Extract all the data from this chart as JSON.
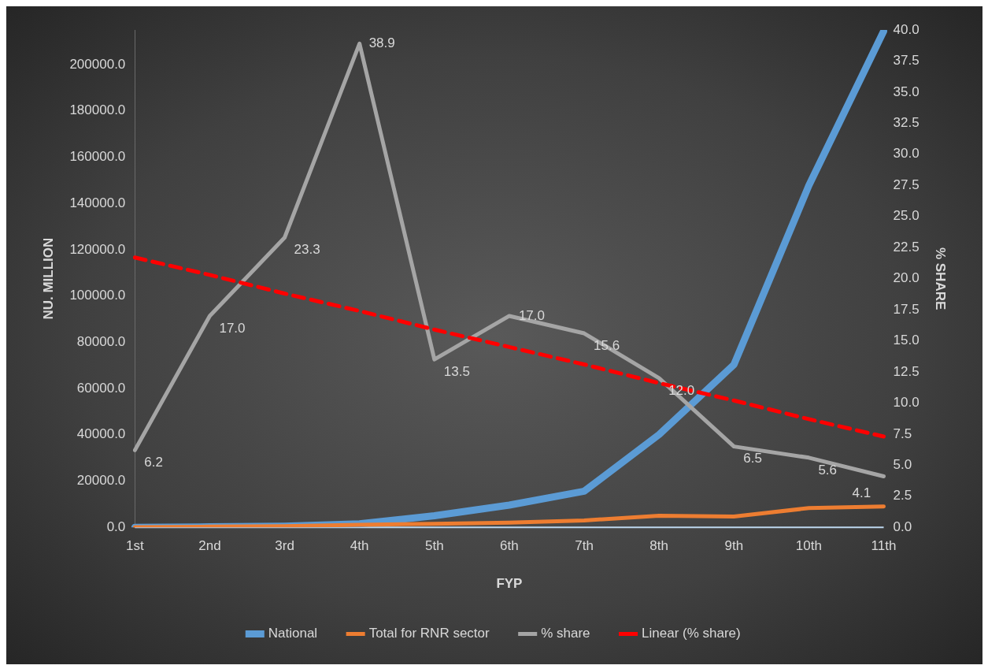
{
  "chart_data": {
    "type": "line",
    "xlabel": "FYP",
    "ylabel": "NU. MILLION",
    "y2label": "% SHARE",
    "categories": [
      "1st",
      "2nd",
      "3rd",
      "4th",
      "5th",
      "6th",
      "7th",
      "8th",
      "9th",
      "10th",
      "11th"
    ],
    "series": [
      {
        "name": "National",
        "color": "#5b9bd5",
        "values": [
          0,
          200,
          500,
          1500,
          5000,
          9600,
          15600,
          40100,
          70300,
          147700,
          214500
        ]
      },
      {
        "name": "Total for RNR sector",
        "color": "#ed7d31",
        "values": [
          100,
          300,
          500,
          1100,
          1500,
          2000,
          3000,
          5000,
          4700,
          8300,
          9000
        ]
      },
      {
        "name": "% share",
        "color": "#a5a5a5",
        "axis": "y2",
        "values": [
          6.2,
          17.0,
          23.3,
          38.9,
          13.5,
          17.0,
          15.6,
          12.0,
          6.5,
          5.6,
          4.1
        ],
        "value_labels": [
          "6.2",
          "17.0",
          "23.3",
          "38.9",
          "13.5",
          "17.0",
          "15.6",
          "12.0",
          "6.5",
          "5.6",
          "4.1"
        ]
      },
      {
        "name": "Linear (% share)",
        "color": "#ff0000",
        "axis": "y2",
        "line_style": "dashed",
        "values": [
          21.7,
          20.3,
          18.8,
          17.4,
          15.9,
          14.5,
          13.1,
          11.6,
          10.2,
          8.7,
          7.3
        ]
      }
    ],
    "ylim": [
      0,
      215000
    ],
    "yticks": [
      {
        "value": 0,
        "label": "0.0"
      },
      {
        "value": 20000,
        "label": "20000.0"
      },
      {
        "value": 40000,
        "label": "40000.0"
      },
      {
        "value": 60000,
        "label": "60000.0"
      },
      {
        "value": 80000,
        "label": "80000.0"
      },
      {
        "value": 100000,
        "label": "100000.0"
      },
      {
        "value": 120000,
        "label": "120000.0"
      },
      {
        "value": 140000,
        "label": "140000.0"
      },
      {
        "value": 160000,
        "label": "160000.0"
      },
      {
        "value": 180000,
        "label": "180000.0"
      },
      {
        "value": 200000,
        "label": "200000.0"
      }
    ],
    "y2lim": [
      0,
      40
    ],
    "y2ticks": [
      {
        "value": 0,
        "label": "0.0"
      },
      {
        "value": 2.5,
        "label": "2.5"
      },
      {
        "value": 5,
        "label": "5.0"
      },
      {
        "value": 7.5,
        "label": "7.5"
      },
      {
        "value": 10,
        "label": "10.0"
      },
      {
        "value": 12.5,
        "label": "12.5"
      },
      {
        "value": 15,
        "label": "15.0"
      },
      {
        "value": 17.5,
        "label": "17.5"
      },
      {
        "value": 20,
        "label": "20.0"
      },
      {
        "value": 22.5,
        "label": "22.5"
      },
      {
        "value": 25,
        "label": "25.0"
      },
      {
        "value": 27.5,
        "label": "27.5"
      },
      {
        "value": 30,
        "label": "30.0"
      },
      {
        "value": 32.5,
        "label": "32.5"
      },
      {
        "value": 35,
        "label": "35.0"
      },
      {
        "value": 37.5,
        "label": "37.5"
      },
      {
        "value": 40,
        "label": "40.0"
      }
    ],
    "grid": false,
    "legend": "bottom",
    "marker": "none",
    "line_style": "solid"
  }
}
